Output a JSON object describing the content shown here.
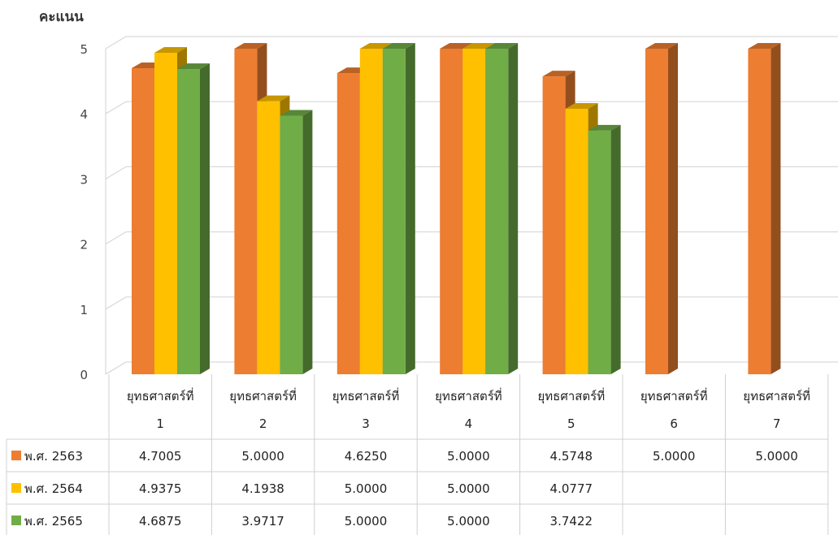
{
  "chart_data": {
    "type": "bar",
    "ylabel": "คะแนน",
    "xlabel": "",
    "ylim": [
      0,
      5
    ],
    "yticks": [
      "0",
      "1",
      "2",
      "3",
      "4",
      "5"
    ],
    "categories": [
      [
        "ยุทธศาสตร์ที่",
        "1"
      ],
      [
        "ยุทธศาสตร์ที่",
        "2"
      ],
      [
        "ยุทธศาสตร์ที่",
        "3"
      ],
      [
        "ยุทธศาสตร์ที่",
        "4"
      ],
      [
        "ยุทธศาสตร์ที่",
        "5"
      ],
      [
        "ยุทธศาสตร์ที่",
        "6"
      ],
      [
        "ยุทธศาสตร์ที่",
        "7"
      ]
    ],
    "series": [
      {
        "name": "พ.ศ. 2563",
        "color": "#ED7D31",
        "values": [
          4.7005,
          5.0,
          4.625,
          5.0,
          4.5748,
          5.0,
          5.0
        ],
        "labels": [
          "4.7005",
          "5.0000",
          "4.6250",
          "5.0000",
          "4.5748",
          "5.0000",
          "5.0000"
        ]
      },
      {
        "name": "พ.ศ. 2564",
        "color": "#FFC000",
        "values": [
          4.9375,
          4.1938,
          5.0,
          5.0,
          4.0777,
          null,
          null
        ],
        "labels": [
          "4.9375",
          "4.1938",
          "5.0000",
          "5.0000",
          "4.0777",
          "",
          ""
        ]
      },
      {
        "name": "พ.ศ. 2565",
        "color": "#70AD47",
        "values": [
          4.6875,
          3.9717,
          5.0,
          5.0,
          3.7422,
          null,
          null
        ],
        "labels": [
          "4.6875",
          "3.9717",
          "5.0000",
          "5.0000",
          "3.7422",
          "",
          ""
        ]
      }
    ],
    "grid": true,
    "data_table": true,
    "legend": "data-table"
  }
}
